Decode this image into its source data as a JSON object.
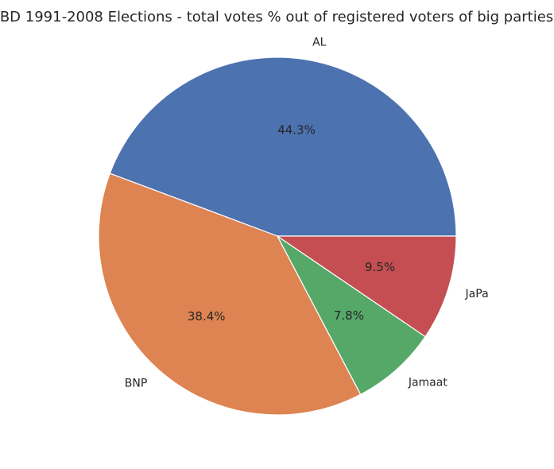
{
  "chart_data": {
    "type": "pie",
    "title": "BD 1991-2008 Elections - total votes % out of registered voters of big parties",
    "categories": [
      "AL",
      "BNP",
      "Jamaat",
      "JaPa"
    ],
    "values": [
      44.3,
      38.4,
      7.8,
      9.5
    ],
    "value_labels": [
      "44.3%",
      "38.4%",
      "7.8%",
      "9.5%"
    ],
    "colors": [
      "#4c72b0",
      "#dd8452",
      "#55a868",
      "#c44e52"
    ]
  }
}
